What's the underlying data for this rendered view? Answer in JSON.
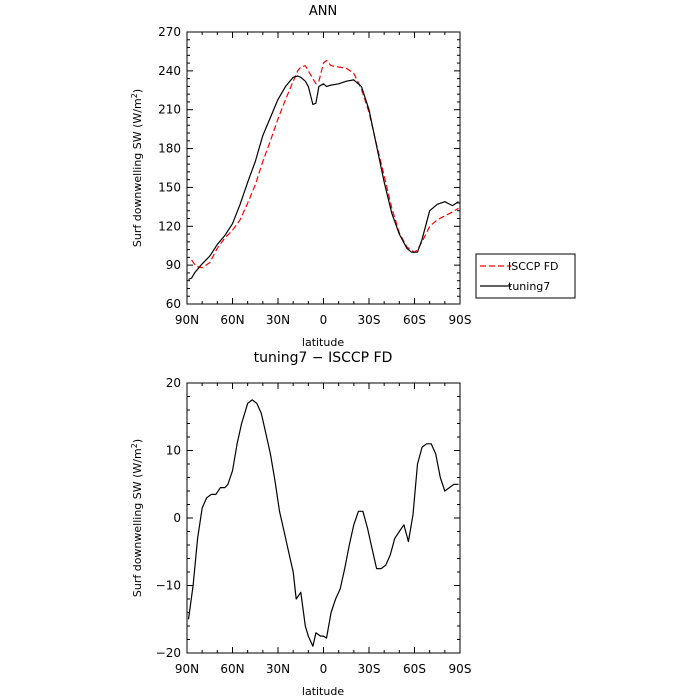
{
  "chart_data": [
    {
      "type": "line",
      "title": "ANN",
      "xlabel": "latitude",
      "ylabel": "Surf downwelling SW (W/m",
      "ylabel_sup": "2",
      "ylabel_end": ")",
      "xlim": [
        90,
        -90
      ],
      "ylim": [
        60,
        270
      ],
      "xticks": [
        90,
        60,
        30,
        0,
        -30,
        -60,
        -90
      ],
      "xtick_labels": [
        "90N",
        "60N",
        "30N",
        "0",
        "30S",
        "60S",
        "90S"
      ],
      "yticks": [
        60,
        90,
        120,
        150,
        180,
        210,
        240,
        270
      ],
      "ytick_labels": [
        "60",
        "90",
        "120",
        "150",
        "180",
        "210",
        "240",
        "270"
      ],
      "legend": "right-middle",
      "grid": false,
      "series": [
        {
          "name": "ISCCP FD",
          "color": "#ff0000",
          "dash": "dashed",
          "x": [
            87,
            84,
            80,
            75,
            70,
            65,
            60,
            55,
            50,
            45,
            40,
            35,
            30,
            25,
            20,
            17,
            15,
            12,
            10,
            7,
            5,
            3,
            0,
            -2,
            -5,
            -10,
            -15,
            -20,
            -25,
            -30,
            -35,
            -40,
            -45,
            -50,
            -55,
            -60,
            -62,
            -65,
            -70,
            -75,
            -80,
            -85,
            -89
          ],
          "y": [
            94,
            89,
            88,
            92,
            103,
            111,
            117,
            125,
            138,
            152,
            170,
            186,
            203,
            218,
            232,
            240,
            243,
            244,
            240,
            234,
            230,
            232,
            246,
            248,
            244,
            243,
            242,
            238,
            226,
            208,
            183,
            159,
            134,
            115,
            104,
            100,
            102,
            108,
            120,
            125,
            128,
            131,
            134
          ]
        },
        {
          "name": "tuning7",
          "color": "#000000",
          "dash": "solid",
          "x": [
            89,
            87,
            85,
            80,
            75,
            70,
            65,
            60,
            55,
            50,
            45,
            40,
            35,
            30,
            25,
            20,
            17,
            15,
            12,
            10,
            7,
            5,
            3,
            0,
            -2,
            -5,
            -10,
            -15,
            -20,
            -25,
            -30,
            -35,
            -40,
            -45,
            -50,
            -55,
            -58,
            -62,
            -65,
            -70,
            -75,
            -80,
            -85,
            -89
          ],
          "y": [
            79,
            80,
            84,
            91,
            97,
            106,
            113,
            122,
            137,
            154,
            170,
            190,
            204,
            218,
            228,
            235,
            236,
            235,
            232,
            228,
            214,
            215,
            228,
            230,
            228,
            229,
            230,
            232,
            233,
            228,
            210,
            182,
            154,
            130,
            114,
            103,
            100,
            100,
            110,
            132,
            137,
            139,
            136,
            139
          ]
        }
      ]
    },
    {
      "type": "line",
      "title": "tuning7 − ISCCP FD",
      "xlabel": "latitude",
      "ylabel": "Surf downwelling SW (W/m",
      "ylabel_sup": "2",
      "ylabel_end": ")",
      "xlim": [
        90,
        -90
      ],
      "ylim": [
        -20,
        20
      ],
      "xticks": [
        90,
        60,
        30,
        0,
        -30,
        -60,
        -90
      ],
      "xtick_labels": [
        "90N",
        "60N",
        "30N",
        "0",
        "30S",
        "60S",
        "90S"
      ],
      "yticks": [
        -20,
        -10,
        0,
        10,
        20
      ],
      "ytick_labels": [
        "−20",
        "−10",
        "0",
        "10",
        "20"
      ],
      "grid": false,
      "series": [
        {
          "color": "#000000",
          "dash": "solid",
          "x": [
            89,
            86,
            83,
            80,
            77,
            74,
            71,
            68,
            65,
            63,
            60,
            57,
            54,
            50,
            47,
            44,
            41,
            38,
            35,
            32,
            29,
            26,
            23,
            20,
            18,
            15,
            12,
            10,
            7,
            5,
            2,
            0,
            -2,
            -5,
            -8,
            -11,
            -14,
            -17,
            -20,
            -23,
            -26,
            -29,
            -32,
            -35,
            -38,
            -41,
            -44,
            -47,
            -50,
            -53,
            -56,
            -59,
            -62,
            -65,
            -68,
            -71,
            -74,
            -77,
            -80,
            -83,
            -86,
            -89
          ],
          "y": [
            -15,
            -10,
            -3,
            1.5,
            3,
            3.5,
            3.5,
            4.5,
            4.5,
            5,
            7,
            11,
            14,
            17,
            17.5,
            17,
            15.5,
            12.5,
            9.5,
            5.5,
            1,
            -2,
            -5,
            -8,
            -12,
            -11,
            -16,
            -17.5,
            -19,
            -17,
            -17.5,
            -17.5,
            -17.8,
            -14,
            -12,
            -10.5,
            -7.5,
            -4,
            -1,
            1,
            1,
            -1.5,
            -4.5,
            -7.5,
            -7.5,
            -7,
            -5.5,
            -3,
            -2,
            -1,
            -3.5,
            0.5,
            8,
            10.5,
            11,
            11,
            9.5,
            6,
            4,
            4.5,
            5,
            5
          ]
        }
      ]
    }
  ]
}
